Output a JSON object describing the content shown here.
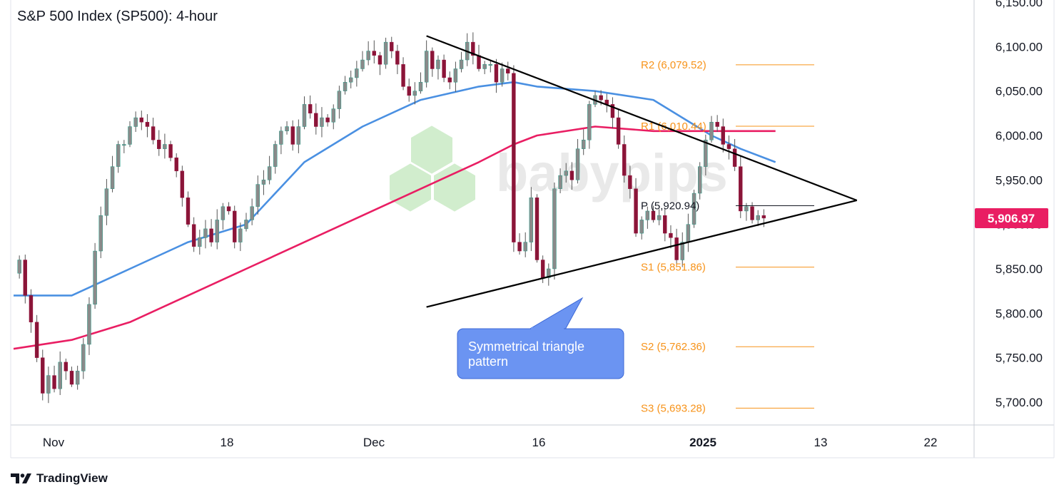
{
  "chart_data": {
    "type": "candlestick",
    "title": "S&P 500 Index (SP500): 4-hour",
    "y_axis": {
      "ticks": [
        "6,150.00",
        "6,100.00",
        "6,050.00",
        "6,000.00",
        "5,950.00",
        "5,900.00",
        "5,850.00",
        "5,800.00",
        "5,750.00",
        "5,700.00"
      ],
      "tick_values": [
        6150,
        6100,
        6050,
        6000,
        5950,
        5900,
        5850,
        5800,
        5750,
        5700
      ],
      "range": [
        5672,
        6155
      ]
    },
    "x_axis": {
      "labels": [
        "Nov",
        "18",
        "Dec",
        "16",
        "2025",
        "13",
        "22"
      ],
      "bold_labels": [
        "2025"
      ]
    },
    "last_price": {
      "label": "5,906.97",
      "value": 5906.97,
      "color": "#e91e63"
    },
    "pivot_levels": [
      {
        "label": "R2 (6,079.52)",
        "value": 6079.52,
        "color": "#f7931a"
      },
      {
        "label": "R1 (6,010.44)",
        "value": 6010.44,
        "color": "#f7931a"
      },
      {
        "label": "P (5,920.94)",
        "value": 5920.94,
        "color": "#131722"
      },
      {
        "label": "S1 (5,851.86)",
        "value": 5851.86,
        "color": "#f7931a"
      },
      {
        "label": "S2 (5,762.36)",
        "value": 5762.36,
        "color": "#f7931a"
      },
      {
        "label": "S3 (5,693.28)",
        "value": 5693.28,
        "color": "#f7931a"
      }
    ],
    "close_path": [
      [
        0,
        5845
      ],
      [
        1,
        5860
      ],
      [
        2,
        5820
      ],
      [
        3,
        5790
      ],
      [
        4,
        5750
      ],
      [
        5,
        5710
      ],
      [
        6,
        5730
      ],
      [
        7,
        5715
      ],
      [
        8,
        5745
      ],
      [
        9,
        5735
      ],
      [
        10,
        5720
      ],
      [
        11,
        5735
      ],
      [
        12,
        5765
      ],
      [
        13,
        5810
      ],
      [
        14,
        5870
      ],
      [
        15,
        5910
      ],
      [
        16,
        5940
      ],
      [
        17,
        5965
      ],
      [
        18,
        5990
      ],
      [
        19,
        5990
      ],
      [
        20,
        6010
      ],
      [
        21,
        6020
      ],
      [
        22,
        6015
      ],
      [
        23,
        6010
      ],
      [
        24,
        5995
      ],
      [
        25,
        5985
      ],
      [
        26,
        5990
      ],
      [
        27,
        5975
      ],
      [
        28,
        5960
      ],
      [
        29,
        5930
      ],
      [
        30,
        5900
      ],
      [
        31,
        5875
      ],
      [
        32,
        5885
      ],
      [
        33,
        5895
      ],
      [
        34,
        5880
      ],
      [
        35,
        5905
      ],
      [
        36,
        5920
      ],
      [
        37,
        5915
      ],
      [
        38,
        5880
      ],
      [
        39,
        5895
      ],
      [
        40,
        5905
      ],
      [
        41,
        5920
      ],
      [
        42,
        5945
      ],
      [
        43,
        5950
      ],
      [
        44,
        5965
      ],
      [
        45,
        5990
      ],
      [
        46,
        6005
      ],
      [
        47,
        6010
      ],
      [
        48,
        5990
      ],
      [
        49,
        6010
      ],
      [
        50,
        6035
      ],
      [
        51,
        6025
      ],
      [
        52,
        6010
      ],
      [
        53,
        6020
      ],
      [
        54,
        6015
      ],
      [
        55,
        6030
      ],
      [
        56,
        6050
      ],
      [
        57,
        6060
      ],
      [
        58,
        6065
      ],
      [
        59,
        6075
      ],
      [
        60,
        6085
      ],
      [
        61,
        6095
      ],
      [
        62,
        6090
      ],
      [
        63,
        6080
      ],
      [
        64,
        6105
      ],
      [
        65,
        6095
      ],
      [
        66,
        6080
      ],
      [
        67,
        6055
      ],
      [
        68,
        6045
      ],
      [
        69,
        6050
      ],
      [
        70,
        6060
      ],
      [
        71,
        6095
      ],
      [
        72,
        6075
      ],
      [
        73,
        6085
      ],
      [
        74,
        6065
      ],
      [
        75,
        6060
      ],
      [
        76,
        6075
      ],
      [
        77,
        6085
      ],
      [
        78,
        6105
      ],
      [
        79,
        6090
      ],
      [
        80,
        6075
      ],
      [
        81,
        6080
      ],
      [
        82,
        6080
      ],
      [
        83,
        6060
      ],
      [
        84,
        6075
      ],
      [
        85,
        6070
      ],
      [
        86,
        5880
      ],
      [
        87,
        5870
      ],
      [
        88,
        5880
      ],
      [
        89,
        5930
      ],
      [
        90,
        5860
      ],
      [
        91,
        5840
      ],
      [
        92,
        5850
      ],
      [
        93,
        5940
      ],
      [
        94,
        5955
      ],
      [
        95,
        5960
      ],
      [
        96,
        5950
      ],
      [
        97,
        5985
      ],
      [
        98,
        5995
      ],
      [
        99,
        6035
      ],
      [
        100,
        6045
      ],
      [
        101,
        6040
      ],
      [
        102,
        6035
      ],
      [
        103,
        6020
      ],
      [
        104,
        5990
      ],
      [
        105,
        5955
      ],
      [
        106,
        5940
      ],
      [
        107,
        5890
      ],
      [
        108,
        5905
      ],
      [
        109,
        5915
      ],
      [
        110,
        5905
      ],
      [
        111,
        5910
      ],
      [
        112,
        5890
      ],
      [
        113,
        5885
      ],
      [
        114,
        5860
      ],
      [
        115,
        5880
      ],
      [
        116,
        5900
      ],
      [
        117,
        5935
      ],
      [
        118,
        5965
      ],
      [
        119,
        5995
      ],
      [
        120,
        6015
      ],
      [
        121,
        6010
      ],
      [
        122,
        5990
      ],
      [
        123,
        5985
      ],
      [
        124,
        5965
      ],
      [
        125,
        5915
      ],
      [
        126,
        5920
      ],
      [
        127,
        5905
      ],
      [
        128,
        5910
      ],
      [
        129,
        5907
      ]
    ],
    "moving_averages": [
      {
        "color": "#4a90e2",
        "path": [
          [
            0,
            5820
          ],
          [
            10,
            5820
          ],
          [
            20,
            5850
          ],
          [
            30,
            5880
          ],
          [
            40,
            5900
          ],
          [
            50,
            5970
          ],
          [
            60,
            6010
          ],
          [
            70,
            6040
          ],
          [
            80,
            6055
          ],
          [
            86,
            6060
          ],
          [
            90,
            6055
          ],
          [
            100,
            6050
          ],
          [
            110,
            6040
          ],
          [
            115,
            6020
          ],
          [
            120,
            6000
          ],
          [
            125,
            5985
          ],
          [
            131,
            5970
          ]
        ]
      },
      {
        "color": "#e91e63",
        "path": [
          [
            0,
            5760
          ],
          [
            10,
            5770
          ],
          [
            20,
            5790
          ],
          [
            30,
            5820
          ],
          [
            40,
            5850
          ],
          [
            50,
            5880
          ],
          [
            60,
            5910
          ],
          [
            70,
            5940
          ],
          [
            80,
            5970
          ],
          [
            86,
            5990
          ],
          [
            90,
            6000
          ],
          [
            100,
            6010
          ],
          [
            110,
            6005
          ],
          [
            120,
            6005
          ],
          [
            131,
            6005
          ]
        ]
      }
    ],
    "triangle": {
      "upper": [
        [
          71,
          6112
        ],
        [
          127,
          6005
        ]
      ],
      "lower": [
        [
          71,
          5807
        ],
        [
          127,
          5895
        ]
      ],
      "apex": [
        145,
        5927
      ]
    },
    "callout": {
      "text_line1": "Symmetrical triangle",
      "text_line2": "pattern"
    },
    "watermark": "babypips"
  },
  "footer": {
    "brand": "TradingView"
  }
}
